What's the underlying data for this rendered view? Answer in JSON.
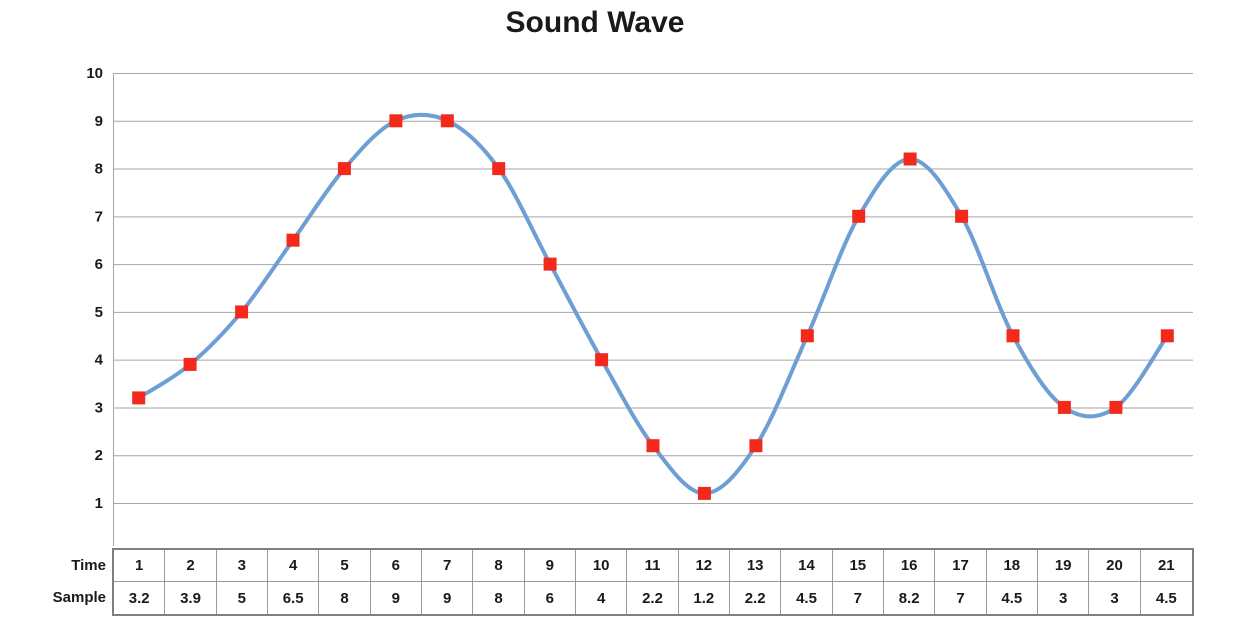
{
  "chart_data": {
    "type": "line",
    "title": "Sound Wave",
    "x": [
      1,
      2,
      3,
      4,
      5,
      6,
      7,
      8,
      9,
      10,
      11,
      12,
      13,
      14,
      15,
      16,
      17,
      18,
      19,
      20,
      21
    ],
    "series": [
      {
        "name": "Sample",
        "values": [
          3.2,
          3.9,
          5,
          6.5,
          8,
          9,
          9,
          8,
          6,
          4,
          2.2,
          1.2,
          2.2,
          4.5,
          7,
          8.2,
          7,
          4.5,
          3,
          3,
          4.5
        ],
        "marker": "square",
        "smooth": true
      }
    ],
    "xlabel": "Time",
    "ylabel": "Sample",
    "ylim": [
      0,
      10
    ],
    "y_ticks": [
      10,
      9,
      8,
      7,
      6,
      5,
      4,
      3,
      2,
      1
    ],
    "grid": "horizontal",
    "legend_position": "none",
    "colors": {
      "line": "#6d9ed4",
      "marker": "#f2291b",
      "gridline": "#a6a6a6",
      "axis": "#a6a6a6",
      "text": "#1a1a1a",
      "table_border_outer": "#7f7f7f",
      "table_border_inner": "#999999",
      "background": "#ffffff"
    }
  },
  "table": {
    "row_headers": [
      "Time",
      "Sample"
    ],
    "time_values": [
      1,
      2,
      3,
      4,
      5,
      6,
      7,
      8,
      9,
      10,
      11,
      12,
      13,
      14,
      15,
      16,
      17,
      18,
      19,
      20,
      21
    ],
    "sample_values": [
      3.2,
      3.9,
      5,
      6.5,
      8,
      9,
      9,
      8,
      6,
      4,
      2.2,
      1.2,
      2.2,
      4.5,
      7,
      8.2,
      7,
      4.5,
      3,
      3,
      4.5
    ]
  }
}
